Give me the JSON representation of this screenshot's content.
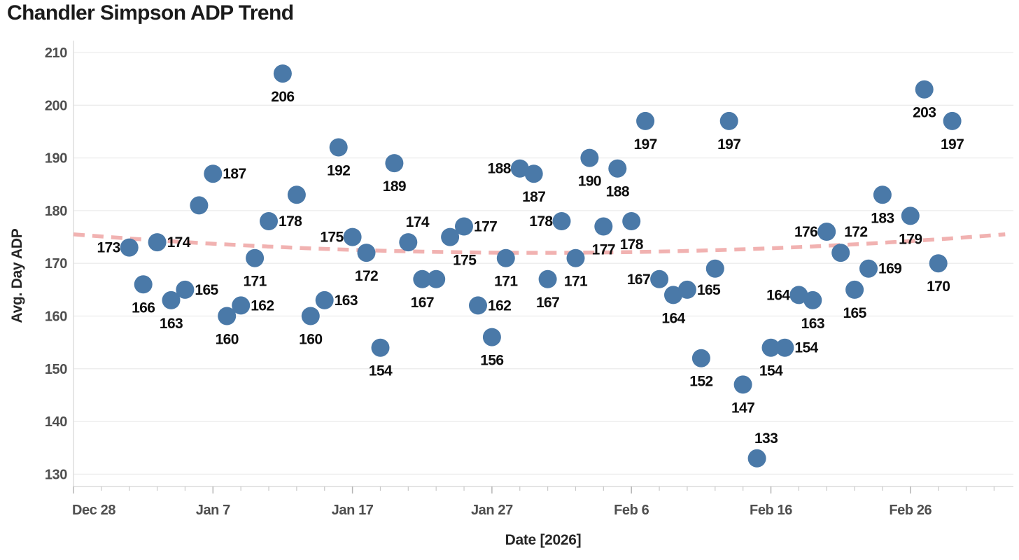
{
  "chart_data": {
    "type": "scatter",
    "title": "Chandler Simpson ADP Trend",
    "xlabel": "Date [2026]",
    "ylabel": "Avg. Day ADP",
    "ylim": [
      130,
      210
    ],
    "grid": "horizontal",
    "legend": "none",
    "y_ticks": [
      210,
      200,
      190,
      180,
      170,
      160,
      150,
      140,
      130
    ],
    "x_ticks": [
      "Dec 28",
      "Jan 7",
      "Jan 17",
      "Jan 27",
      "Feb 6",
      "Feb 16",
      "Feb 26"
    ],
    "colors": {
      "point": "#4a79a8",
      "trendline": "#efa5a3",
      "grid": "#ececec",
      "axis_text": "#4f4f4f",
      "label_text": "#0e0e0e",
      "title_text": "#1b1b1b"
    },
    "points": [
      {
        "date": "Jan 1",
        "adp": 173,
        "label": "left"
      },
      {
        "date": "Jan 2",
        "adp": 166,
        "label": "below"
      },
      {
        "date": "Jan 3",
        "adp": 174,
        "label": "right"
      },
      {
        "date": "Jan 4",
        "adp": 163,
        "label": "below"
      },
      {
        "date": "Jan 5",
        "adp": 165,
        "label": "right"
      },
      {
        "date": "Jan 6",
        "adp": 181,
        "label": "none"
      },
      {
        "date": "Jan 7",
        "adp": 187,
        "label": "right"
      },
      {
        "date": "Jan 8",
        "adp": 160,
        "label": "below"
      },
      {
        "date": "Jan 9",
        "adp": 162,
        "label": "right"
      },
      {
        "date": "Jan 10",
        "adp": 171,
        "label": "below"
      },
      {
        "date": "Jan 11",
        "adp": 178,
        "label": "right"
      },
      {
        "date": "Jan 12",
        "adp": 206,
        "label": "below"
      },
      {
        "date": "Jan 13",
        "adp": 183,
        "label": "none"
      },
      {
        "date": "Jan 14",
        "adp": 160,
        "label": "below"
      },
      {
        "date": "Jan 15",
        "adp": 163,
        "label": "right"
      },
      {
        "date": "Jan 16",
        "adp": 192,
        "label": "below"
      },
      {
        "date": "Jan 17",
        "adp": 175,
        "label": "left"
      },
      {
        "date": "Jan 18",
        "adp": 172,
        "label": "below"
      },
      {
        "date": "Jan 19",
        "adp": 154,
        "label": "below"
      },
      {
        "date": "Jan 20",
        "adp": 189,
        "label": "below"
      },
      {
        "date": "Jan 21",
        "adp": 174,
        "label": "above"
      },
      {
        "date": "Jan 22",
        "adp": 167,
        "label": "below"
      },
      {
        "date": "Jan 23",
        "adp": 167,
        "label": "none"
      },
      {
        "date": "Jan 24",
        "adp": 175,
        "label": "below-right"
      },
      {
        "date": "Jan 25",
        "adp": 177,
        "label": "right"
      },
      {
        "date": "Jan 26",
        "adp": 162,
        "label": "right"
      },
      {
        "date": "Jan 27",
        "adp": 156,
        "label": "below"
      },
      {
        "date": "Jan 28",
        "adp": 171,
        "label": "below"
      },
      {
        "date": "Jan 29",
        "adp": 188,
        "label": "left"
      },
      {
        "date": "Jan 30",
        "adp": 187,
        "label": "below"
      },
      {
        "date": "Jan 31",
        "adp": 167,
        "label": "below"
      },
      {
        "date": "Feb 1",
        "adp": 178,
        "label": "left"
      },
      {
        "date": "Feb 2",
        "adp": 171,
        "label": "below"
      },
      {
        "date": "Feb 3",
        "adp": 190,
        "label": "below"
      },
      {
        "date": "Feb 4",
        "adp": 177,
        "label": "below"
      },
      {
        "date": "Feb 5",
        "adp": 188,
        "label": "below"
      },
      {
        "date": "Feb 6",
        "adp": 178,
        "label": "below"
      },
      {
        "date": "Feb 7",
        "adp": 197,
        "label": "below"
      },
      {
        "date": "Feb 8",
        "adp": 167,
        "label": "left"
      },
      {
        "date": "Feb 9",
        "adp": 164,
        "label": "below"
      },
      {
        "date": "Feb 10",
        "adp": 165,
        "label": "right"
      },
      {
        "date": "Feb 11",
        "adp": 152,
        "label": "below"
      },
      {
        "date": "Feb 12",
        "adp": 169,
        "label": "none"
      },
      {
        "date": "Feb 13",
        "adp": 197,
        "label": "below"
      },
      {
        "date": "Feb 14",
        "adp": 147,
        "label": "below"
      },
      {
        "date": "Feb 15",
        "adp": 133,
        "label": "above"
      },
      {
        "date": "Feb 16",
        "adp": 154,
        "label": "below"
      },
      {
        "date": "Feb 17",
        "adp": 154,
        "label": "right"
      },
      {
        "date": "Feb 18",
        "adp": 164,
        "label": "left"
      },
      {
        "date": "Feb 19",
        "adp": 163,
        "label": "below"
      },
      {
        "date": "Feb 20",
        "adp": 176,
        "label": "left"
      },
      {
        "date": "Feb 21",
        "adp": 172,
        "label": "above-right"
      },
      {
        "date": "Feb 22",
        "adp": 165,
        "label": "below"
      },
      {
        "date": "Feb 23",
        "adp": 169,
        "label": "right"
      },
      {
        "date": "Feb 24",
        "adp": 183,
        "label": "below"
      },
      {
        "date": "Feb 26",
        "adp": 179,
        "label": "below"
      },
      {
        "date": "Feb 27",
        "adp": 203,
        "label": "below"
      },
      {
        "date": "Feb 28",
        "adp": 170,
        "label": "below"
      },
      {
        "date": "Mar 1",
        "adp": 197,
        "label": "below"
      }
    ],
    "trendline": {
      "style": "dashed",
      "shape": "quadratic",
      "start": {
        "day_offset": 0,
        "value": 175.5
      },
      "vertex": {
        "day_offset": 33.4,
        "value": 172.0
      },
      "end": {
        "day_offset": 66.8,
        "value": 175.5
      }
    }
  }
}
